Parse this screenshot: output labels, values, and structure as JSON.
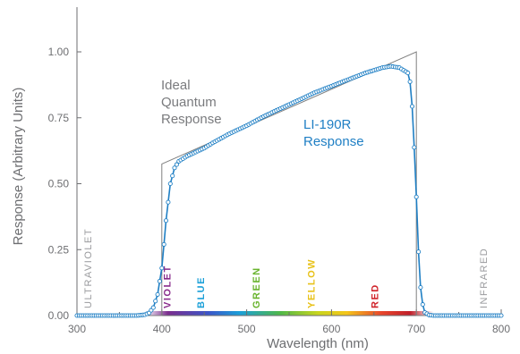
{
  "chart_data": {
    "type": "line",
    "xlabel": "Wavelength (nm)",
    "ylabel": "Response (Arbitrary Units)",
    "xlim": [
      300,
      800
    ],
    "ylim": [
      0,
      1.0
    ],
    "x_ticks": [
      "300",
      "400",
      "500",
      "600",
      "700",
      "800"
    ],
    "y_ticks": [
      "0.00",
      "0.25",
      "0.50",
      "0.75",
      "1.00"
    ],
    "grid": false,
    "series": [
      {
        "name": "Ideal Quantum Response",
        "color": "#808080",
        "x": [
          300,
          400,
          400,
          700,
          700,
          800
        ],
        "y": [
          0,
          0,
          0.575,
          1.0,
          0,
          0
        ]
      },
      {
        "name": "LI-190R Response",
        "color": "#1f7fc4",
        "x": [
          300,
          370,
          380,
          385,
          390,
          395,
          400,
          405,
          410,
          415,
          420,
          430,
          440,
          450,
          460,
          480,
          500,
          520,
          540,
          560,
          580,
          600,
          620,
          640,
          660,
          670,
          680,
          690,
          693,
          696,
          700,
          703,
          706,
          710,
          715,
          720,
          800
        ],
        "y": [
          0.0,
          0.0,
          0.003,
          0.01,
          0.03,
          0.08,
          0.18,
          0.36,
          0.5,
          0.56,
          0.585,
          0.605,
          0.62,
          0.635,
          0.655,
          0.69,
          0.72,
          0.755,
          0.785,
          0.815,
          0.845,
          0.87,
          0.895,
          0.92,
          0.94,
          0.945,
          0.94,
          0.92,
          0.88,
          0.75,
          0.45,
          0.2,
          0.06,
          0.012,
          0.002,
          0.0,
          0.0
        ]
      }
    ],
    "annotations": {
      "ideal_lines": [
        "Ideal",
        "Quantum",
        "Response"
      ],
      "li190r_lines": [
        "LI-190R",
        "Response"
      ]
    },
    "spectral_bands": [
      {
        "label": "ULTRAVIOLET",
        "color": "#9a9b9e",
        "x": 300
      },
      {
        "label": "VIOLET",
        "color": "#8a2d8c",
        "x": 410
      },
      {
        "label": "BLUE",
        "color": "#1ba0d8",
        "x": 450
      },
      {
        "label": "GREEN",
        "color": "#69b42e",
        "x": 515
      },
      {
        "label": "YELLOW",
        "color": "#e8c21a",
        "x": 580
      },
      {
        "label": "RED",
        "color": "#d0232a",
        "x": 655
      },
      {
        "label": "INFRARED",
        "color": "#9a9b9e",
        "x": 783
      }
    ],
    "spectrum_gradient_range": [
      380,
      720
    ]
  }
}
